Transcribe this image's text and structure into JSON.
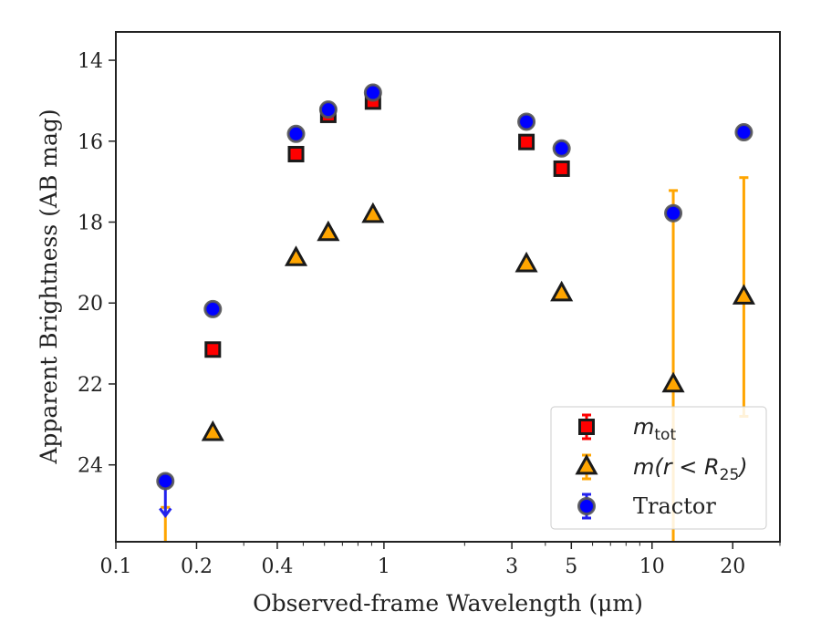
{
  "chart_data": {
    "type": "scatter",
    "xlabel": "Observed-frame Wavelength (μm)",
    "ylabel": "Apparent Brightness (AB mag)",
    "xscale": "log",
    "xlim": [
      0.1,
      30
    ],
    "ylim": [
      25.9,
      13.3
    ],
    "y_inverted": true,
    "xticks": [
      {
        "value": 0.1,
        "label": "0.1"
      },
      {
        "value": 0.2,
        "label": "0.2"
      },
      {
        "value": 0.4,
        "label": "0.4"
      },
      {
        "value": 1,
        "label": "1"
      },
      {
        "value": 3,
        "label": "3"
      },
      {
        "value": 5,
        "label": "5"
      },
      {
        "value": 10,
        "label": "10"
      },
      {
        "value": 20,
        "label": "20"
      }
    ],
    "yticks": [
      {
        "value": 14,
        "label": "14"
      },
      {
        "value": 16,
        "label": "16"
      },
      {
        "value": 18,
        "label": "18"
      },
      {
        "value": 20,
        "label": "20"
      },
      {
        "value": 22,
        "label": "22"
      },
      {
        "value": 24,
        "label": "24"
      }
    ],
    "grid": false,
    "legend_position": "lower right",
    "series": [
      {
        "name_main": "m",
        "name_sub": "tot",
        "marker": "square",
        "color": "#ff0000",
        "edge": "#1a1a1a",
        "points": [
          {
            "x": 0.23,
            "y": 21.15
          },
          {
            "x": 0.47,
            "y": 16.32
          },
          {
            "x": 0.62,
            "y": 15.35
          },
          {
            "x": 0.91,
            "y": 15.02
          },
          {
            "x": 3.4,
            "y": 16.02
          },
          {
            "x": 4.6,
            "y": 16.68
          }
        ]
      },
      {
        "name_main": "m(r < R",
        "name_sub": "25",
        "name_end": ")",
        "marker": "triangle",
        "color": "#ffa500",
        "edge": "#1a1a1a",
        "points": [
          {
            "x": 0.153,
            "y": 26.3,
            "err_low": 1.25,
            "err_high": 0
          },
          {
            "x": 0.23,
            "y": 23.22
          },
          {
            "x": 0.47,
            "y": 18.9
          },
          {
            "x": 0.62,
            "y": 18.28
          },
          {
            "x": 0.91,
            "y": 17.83
          },
          {
            "x": 3.4,
            "y": 19.05
          },
          {
            "x": 4.6,
            "y": 19.77
          },
          {
            "x": 12.0,
            "y": 22.02,
            "err_low": 4.8,
            "err_high": 4.8
          },
          {
            "x": 22.0,
            "y": 19.85,
            "err_low": 2.95,
            "err_high": 2.95
          }
        ]
      },
      {
        "name_main": "Tractor",
        "marker": "circle",
        "color": "#0000ff",
        "edge": "#555555",
        "points": [
          {
            "x": 0.153,
            "y": 24.4,
            "upper_limit": true
          },
          {
            "x": 0.23,
            "y": 20.15
          },
          {
            "x": 0.47,
            "y": 15.82
          },
          {
            "x": 0.62,
            "y": 15.22
          },
          {
            "x": 0.91,
            "y": 14.8
          },
          {
            "x": 3.4,
            "y": 15.52
          },
          {
            "x": 4.6,
            "y": 16.18
          },
          {
            "x": 12.0,
            "y": 17.78
          },
          {
            "x": 22.0,
            "y": 15.78
          }
        ]
      }
    ]
  }
}
